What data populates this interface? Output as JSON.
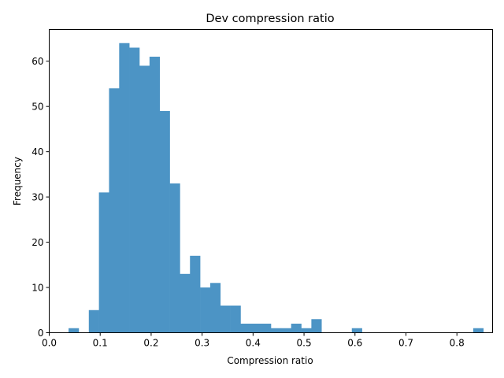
{
  "chart_data": {
    "type": "bar",
    "title": "Dev compression ratio",
    "xlabel": "Compression ratio",
    "ylabel": "Frequency",
    "xlim": [
      0.0,
      0.87
    ],
    "ylim": [
      0,
      67
    ],
    "xticks": [
      0.0,
      0.1,
      0.2,
      0.3,
      0.4,
      0.5,
      0.6,
      0.7,
      0.8
    ],
    "xtick_labels": [
      "0.0",
      "0.1",
      "0.2",
      "0.3",
      "0.4",
      "0.5",
      "0.6",
      "0.7",
      "0.8"
    ],
    "yticks": [
      0,
      10,
      20,
      30,
      40,
      50,
      60
    ],
    "ytick_labels": [
      "0",
      "10",
      "20",
      "30",
      "40",
      "50",
      "60"
    ],
    "bin_start": 0.038,
    "bin_width": 0.01985,
    "counts": [
      1,
      0,
      5,
      31,
      54,
      64,
      63,
      59,
      61,
      49,
      33,
      13,
      17,
      10,
      11,
      6,
      6,
      2,
      2,
      2,
      1,
      1,
      2,
      1,
      3,
      0,
      0,
      0,
      1,
      0,
      0,
      0,
      0,
      0,
      0,
      0,
      0,
      0,
      0,
      0,
      1
    ],
    "bar_color": "#4c94c5",
    "grid": false
  }
}
